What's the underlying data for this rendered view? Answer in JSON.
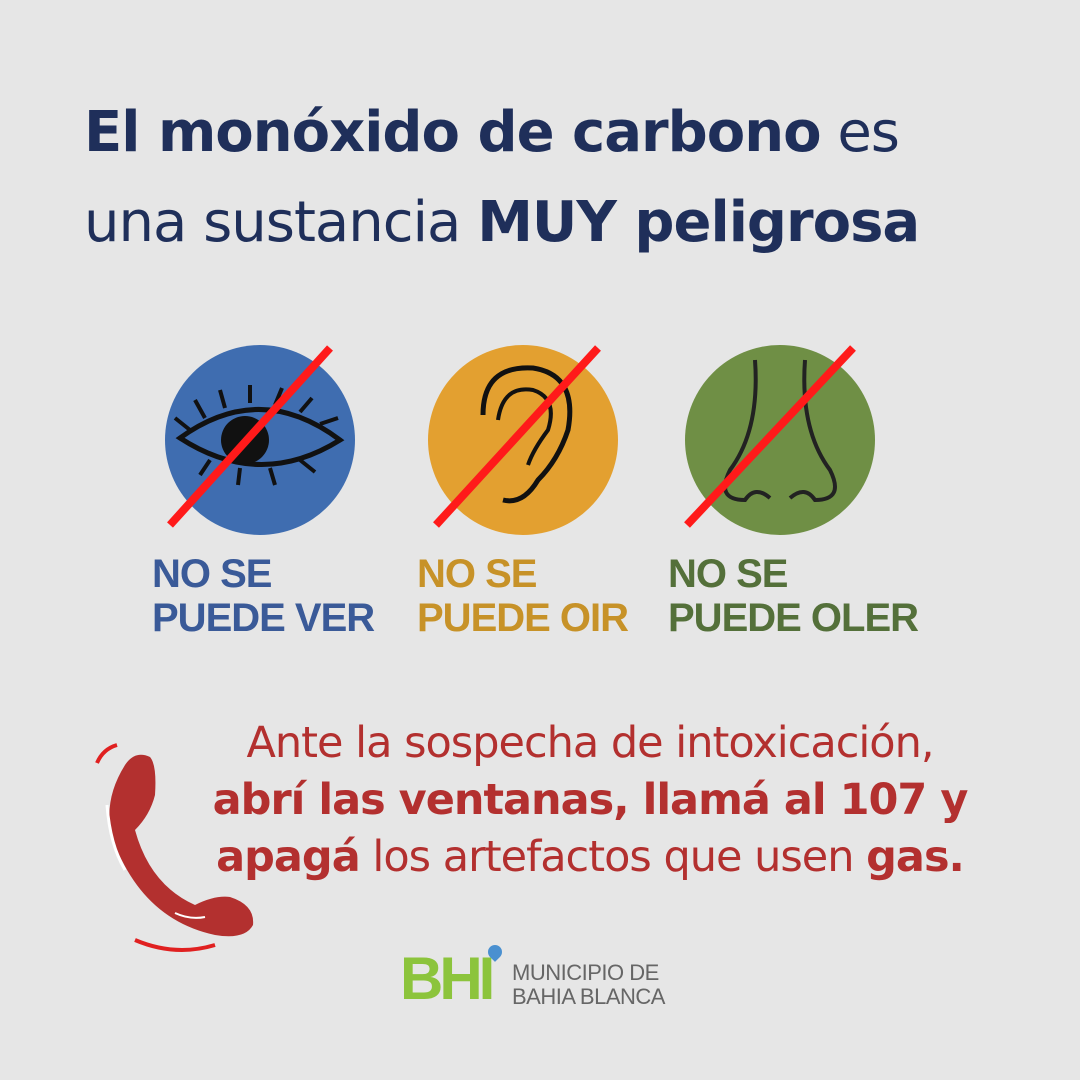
{
  "title": {
    "line1_bold": "El monóxido de carbono",
    "line1_light": " es",
    "line2_light": "una sustancia ",
    "line2_bold": "MUY peligrosa"
  },
  "senses": [
    {
      "icon": "eye-icon",
      "line1": "NO SE",
      "line2": "PUEDE VER",
      "circle_color": "#3f6db0",
      "text_color": "#3a5a98"
    },
    {
      "icon": "ear-icon",
      "line1": "NO SE",
      "line2": "PUEDE OIR",
      "circle_color": "#e3a030",
      "text_color": "#c79228"
    },
    {
      "icon": "nose-icon",
      "line1": "NO SE",
      "line2": "PUEDE OLER",
      "circle_color": "#6f8f45",
      "text_color": "#54703a"
    }
  ],
  "message": {
    "line1": "Ante la sospecha de intoxicación,",
    "line2": "abrí las ventanas, llamá al 107 y",
    "line3_bold1": "apagá",
    "line3_light": " los artefactos que usen ",
    "line3_bold2": "gas."
  },
  "logo": {
    "mark": "BHI",
    "line1": "MUNICIPIO DE",
    "line2": "BAHIA BLANCA"
  },
  "colors": {
    "title": "#1f2f5a",
    "message": "#b3302f",
    "slash": "#ff1a1a",
    "background": "#e6e6e6",
    "logo_green": "#8cc43c"
  }
}
